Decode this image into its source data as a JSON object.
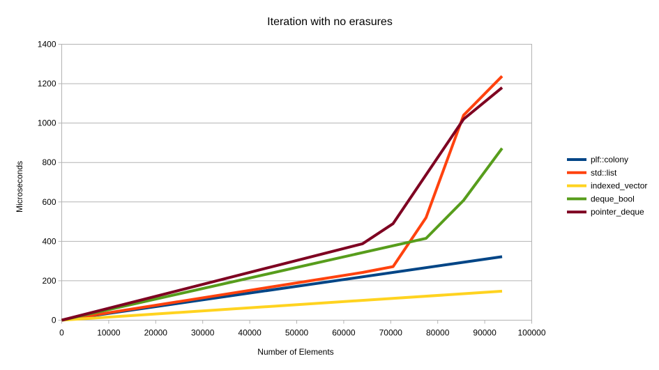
{
  "chart_data": {
    "type": "line",
    "title": "Iteration with no erasures",
    "xlabel": "Number of Elements",
    "ylabel": "Microseconds",
    "xlim": [
      0,
      100000
    ],
    "ylim": [
      0,
      1400
    ],
    "xticks": [
      0,
      10000,
      20000,
      30000,
      40000,
      50000,
      60000,
      70000,
      80000,
      90000,
      100000
    ],
    "yticks": [
      0,
      200,
      400,
      600,
      800,
      1000,
      1200,
      1400
    ],
    "grid": "horizontal",
    "legend_position": "right",
    "series": [
      {
        "name": "plf::colony",
        "color": "#004586",
        "x": [
          0,
          1000,
          2000,
          3000,
          4000,
          5000,
          6000,
          7000,
          93700
        ],
        "y": [
          0,
          3,
          7,
          10,
          13,
          17,
          21,
          24,
          322
        ]
      },
      {
        "name": "std::list",
        "color": "#ff420e",
        "x": [
          0,
          64000,
          70500,
          77500,
          85500,
          93700
        ],
        "y": [
          0,
          242,
          272,
          520,
          1040,
          1238
        ]
      },
      {
        "name": "indexed_vector",
        "color": "#ffd320",
        "x": [
          0,
          93700
        ],
        "y": [
          0,
          147
        ]
      },
      {
        "name": "deque_bool",
        "color": "#579d1c",
        "x": [
          0,
          77500,
          85500,
          93700
        ],
        "y": [
          0,
          415,
          608,
          872
        ]
      },
      {
        "name": "pointer_deque",
        "color": "#7e0021",
        "x": [
          0,
          64000,
          70500,
          85500,
          93700
        ],
        "y": [
          0,
          388,
          490,
          1020,
          1180
        ]
      }
    ]
  }
}
